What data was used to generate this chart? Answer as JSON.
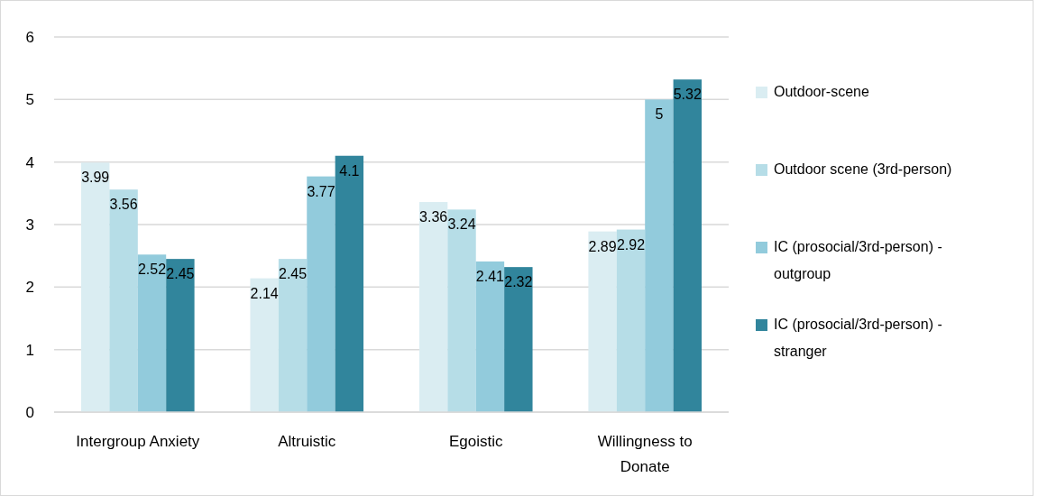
{
  "chart_data": {
    "type": "bar",
    "categories": [
      "Intergroup Anxiety",
      "Altruistic",
      "Egoistic",
      "Willingness to Donate"
    ],
    "series": [
      {
        "name": "Outdoor-scene",
        "color": "#daedf2",
        "values": [
          3.99,
          2.14,
          3.36,
          2.89
        ]
      },
      {
        "name": "Outdoor scene (3rd-person)",
        "color": "#b6dde7",
        "values": [
          3.56,
          2.45,
          3.24,
          2.92
        ]
      },
      {
        "name": "IC (prosocial/3rd-person) - outgroup",
        "color": "#92cbdc",
        "values": [
          2.52,
          3.77,
          2.41,
          5
        ]
      },
      {
        "name": "IC (prosocial/3rd-person) - stranger",
        "color": "#31859c",
        "values": [
          2.45,
          4.1,
          2.32,
          5.32
        ]
      }
    ],
    "ylim": [
      0,
      6
    ],
    "yticks": [
      0,
      1,
      2,
      3,
      4,
      5,
      6
    ],
    "grid": "y",
    "legend": "right",
    "data_labels": true
  }
}
